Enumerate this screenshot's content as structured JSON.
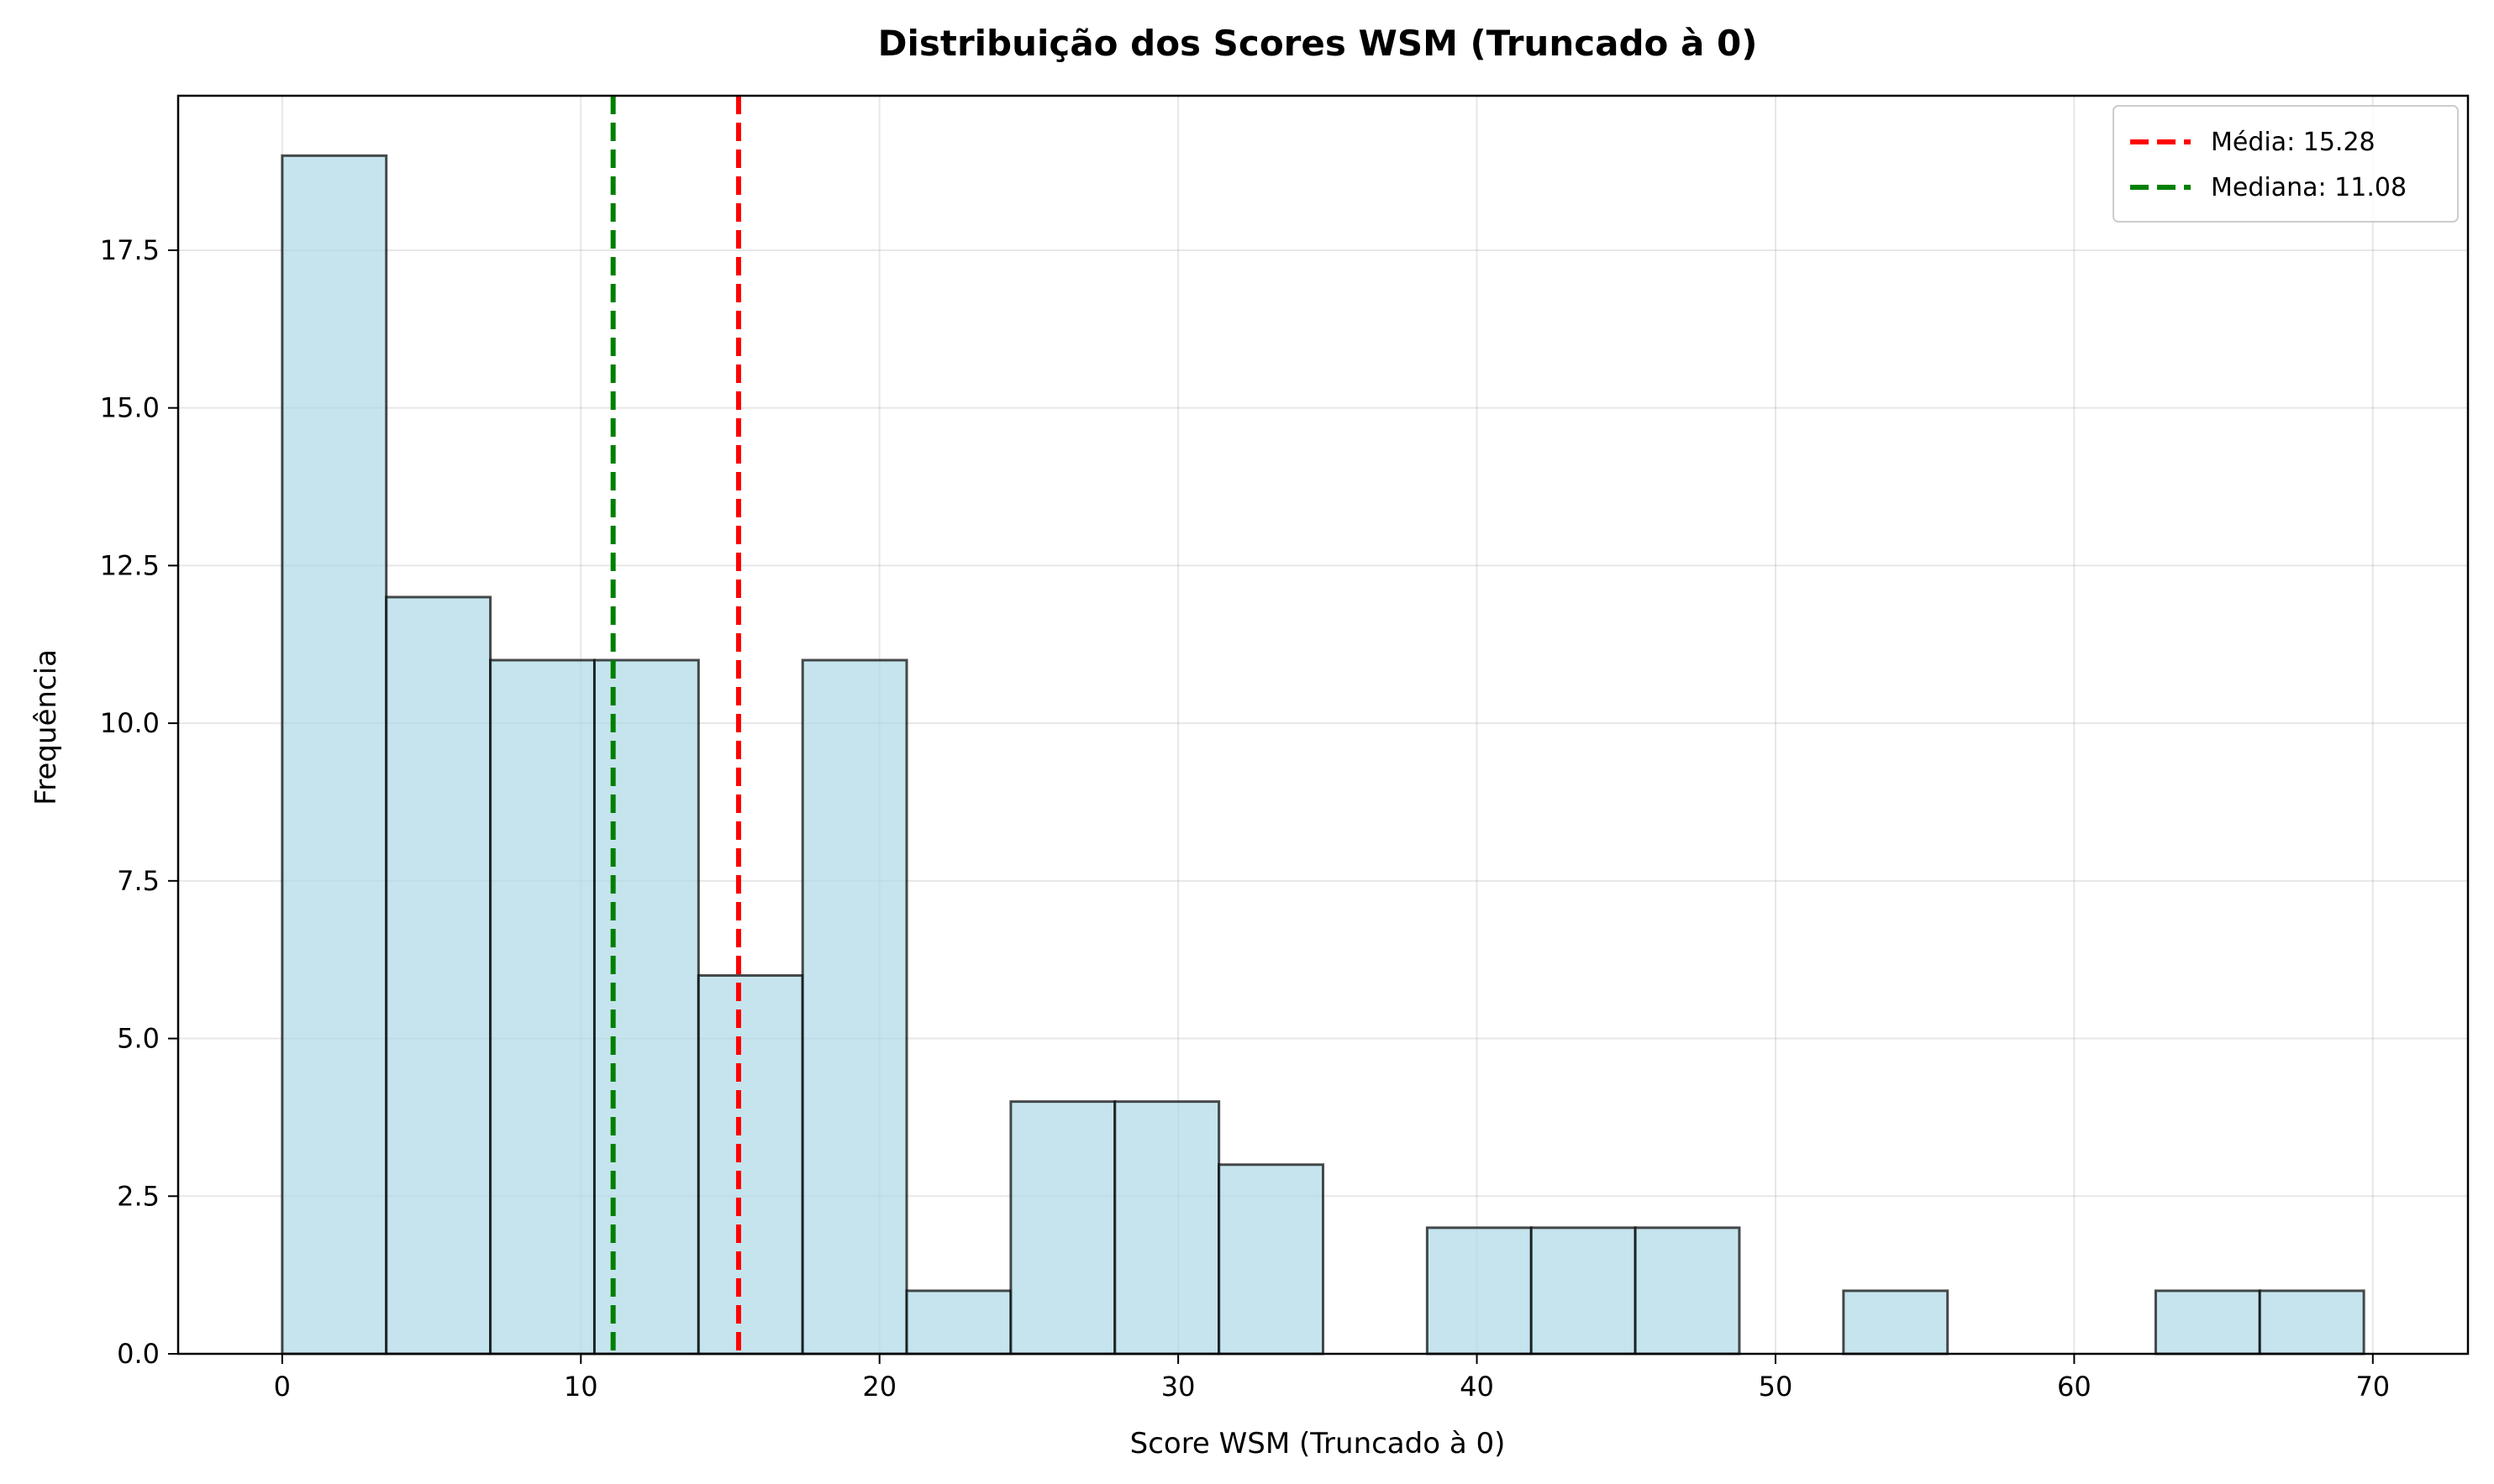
{
  "chart_data": {
    "type": "bar",
    "title": "Distribuição dos Scores WSM (Truncado à 0)",
    "xlabel": "Score WSM (Truncado à 0)",
    "ylabel": "Frequência",
    "bin_edges": [
      0,
      3.485,
      6.97,
      10.455,
      13.94,
      17.425,
      20.91,
      24.395,
      27.88,
      31.365,
      34.85,
      38.335,
      41.82,
      45.305,
      48.79,
      52.275,
      55.76,
      59.245,
      62.73,
      66.215,
      69.7
    ],
    "values": [
      19,
      12,
      11,
      11,
      6,
      11,
      1,
      4,
      4,
      3,
      0,
      2,
      2,
      2,
      0,
      1,
      0,
      0,
      1,
      1
    ],
    "xlim": [
      -3.485,
      73.185
    ],
    "ylim": [
      0,
      19.95
    ],
    "xticks": [
      0,
      10,
      20,
      30,
      40,
      50,
      60,
      70
    ],
    "xtick_labels": [
      "0",
      "10",
      "20",
      "30",
      "40",
      "50",
      "60",
      "70"
    ],
    "yticks": [
      0,
      2.5,
      5,
      7.5,
      10,
      12.5,
      15,
      17.5
    ],
    "ytick_labels": [
      "0.0",
      "2.5",
      "5.0",
      "7.5",
      "10.0",
      "12.5",
      "15.0",
      "17.5"
    ],
    "grid": true,
    "legend_position": "top-right",
    "bar_color": "#add8e6",
    "bar_edge_color": "#000000",
    "reference_lines": [
      {
        "name": "Média: 15.28",
        "x": 15.28,
        "color": "#ff0000",
        "style": "dashed"
      },
      {
        "name": "Mediana: 11.08",
        "x": 11.08,
        "color": "#008000",
        "style": "dashed"
      }
    ]
  }
}
